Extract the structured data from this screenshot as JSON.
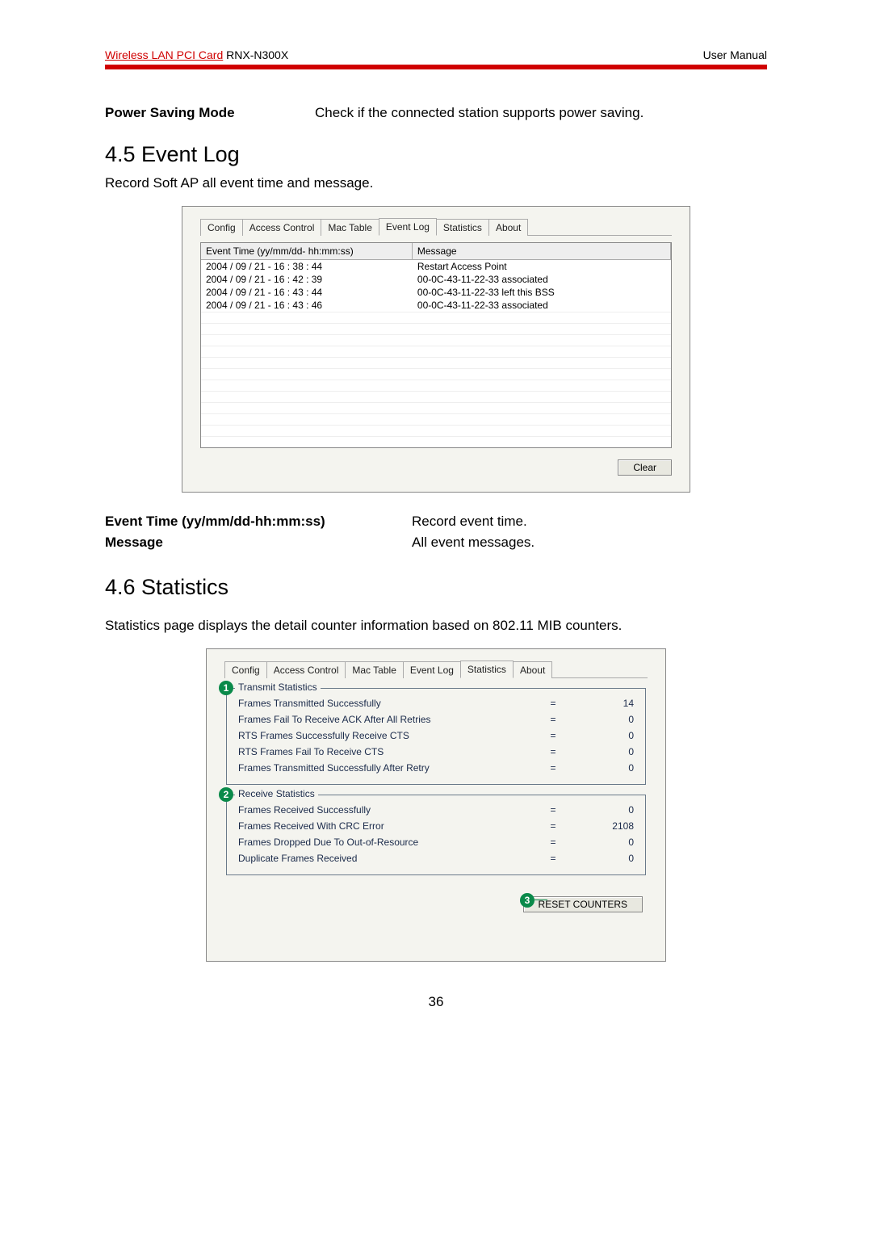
{
  "header": {
    "product_red": "Wireless LAN PCI Card",
    "product_model": " RNX-N300X",
    "right": "User Manual",
    "bar_color": "#d00000"
  },
  "power_saving": {
    "label": "Power Saving Mode",
    "desc": "Check if the connected station supports power saving."
  },
  "s45": {
    "title": "4.5    Event Log",
    "sub": "Record Soft AP all event time and message."
  },
  "eventlog_dialog": {
    "tabs": [
      "Config",
      "Access Control",
      "Mac Table",
      "Event Log",
      "Statistics",
      "About"
    ],
    "active_tab": 3,
    "col1": "Event Time (yy/mm/dd- hh:mm:ss)",
    "col2": "Message",
    "rows": [
      {
        "t": "2004 / 09 / 21 - 16 : 38 : 44",
        "m": "Restart Access Point"
      },
      {
        "t": "2004 / 09 / 21 - 16 : 42 : 39",
        "m": "00-0C-43-11-22-33 associated"
      },
      {
        "t": "2004 / 09 / 21 - 16 : 43 : 44",
        "m": "00-0C-43-11-22-33 left this BSS"
      },
      {
        "t": "2004 / 09 / 21 - 16 : 43 : 46",
        "m": "00-0C-43-11-22-33 associated"
      }
    ],
    "blank_rows": 12,
    "clear_btn": "Clear"
  },
  "event_desc": {
    "rows": [
      {
        "label": "Event Time (yy/mm/dd-hh:mm:ss)",
        "val": "Record event time."
      },
      {
        "label": "Message",
        "val": "All event messages."
      }
    ]
  },
  "s46": {
    "title": "4.6    Statistics",
    "para": "Statistics page displays the detail counter information based on 802.11 MIB counters."
  },
  "stats_dialog": {
    "tabs": [
      "Config",
      "Access Control",
      "Mac Table",
      "Event Log",
      "Statistics",
      "About"
    ],
    "active_tab": 4,
    "transmit": {
      "legend": "Transmit Statistics",
      "callout": "1",
      "rows": [
        {
          "name": "Frames Transmitted Successfully",
          "val": "14"
        },
        {
          "name": "Frames Fail To Receive ACK After All Retries",
          "val": "0"
        },
        {
          "name": "RTS Frames Successfully Receive CTS",
          "val": "0"
        },
        {
          "name": "RTS Frames Fail To Receive CTS",
          "val": "0"
        },
        {
          "name": "Frames Transmitted Successfully After Retry",
          "val": "0"
        }
      ]
    },
    "receive": {
      "legend": "Receive Statistics",
      "callout": "2",
      "rows": [
        {
          "name": "Frames Received Successfully",
          "val": "0"
        },
        {
          "name": "Frames Received With CRC Error",
          "val": "2108"
        },
        {
          "name": "Frames Dropped Due To Out-of-Resource",
          "val": "0"
        },
        {
          "name": "Duplicate Frames Received",
          "val": "0"
        }
      ]
    },
    "reset_btn": "RESET COUNTERS",
    "callout3": "3"
  },
  "page_number": "36"
}
